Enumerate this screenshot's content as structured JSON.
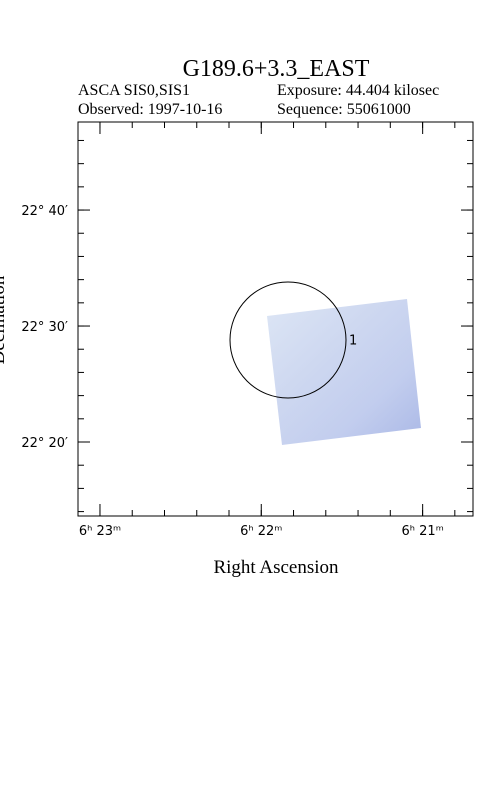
{
  "chart_data": {
    "type": "sky-image",
    "title": "G189.6+3.3_EAST",
    "instrument": "ASCA SIS0,SIS1",
    "exposure": "Exposure: 44.404 kilosec",
    "observed": "Observed: 1997-10-16",
    "sequence": "Sequence: 55061000",
    "x_label": "Right Ascension",
    "y_label": "Declination",
    "xlim": [
      6.3856,
      6.3448
    ],
    "xticks": [
      {
        "value": 6.38333,
        "label": "6ʰ 23ᵐ"
      },
      {
        "value": 6.36667,
        "label": "6ʰ 22ᵐ"
      },
      {
        "value": 6.35,
        "label": "6ʰ 21ᵐ"
      }
    ],
    "ylim": [
      22.227,
      22.7932
    ],
    "yticks": [
      {
        "value": 22.66667,
        "label": "22° 40′"
      },
      {
        "value": 22.5,
        "label": "22° 30′"
      },
      {
        "value": 22.33333,
        "label": "22° 20′"
      }
    ],
    "region_label": "1"
  }
}
